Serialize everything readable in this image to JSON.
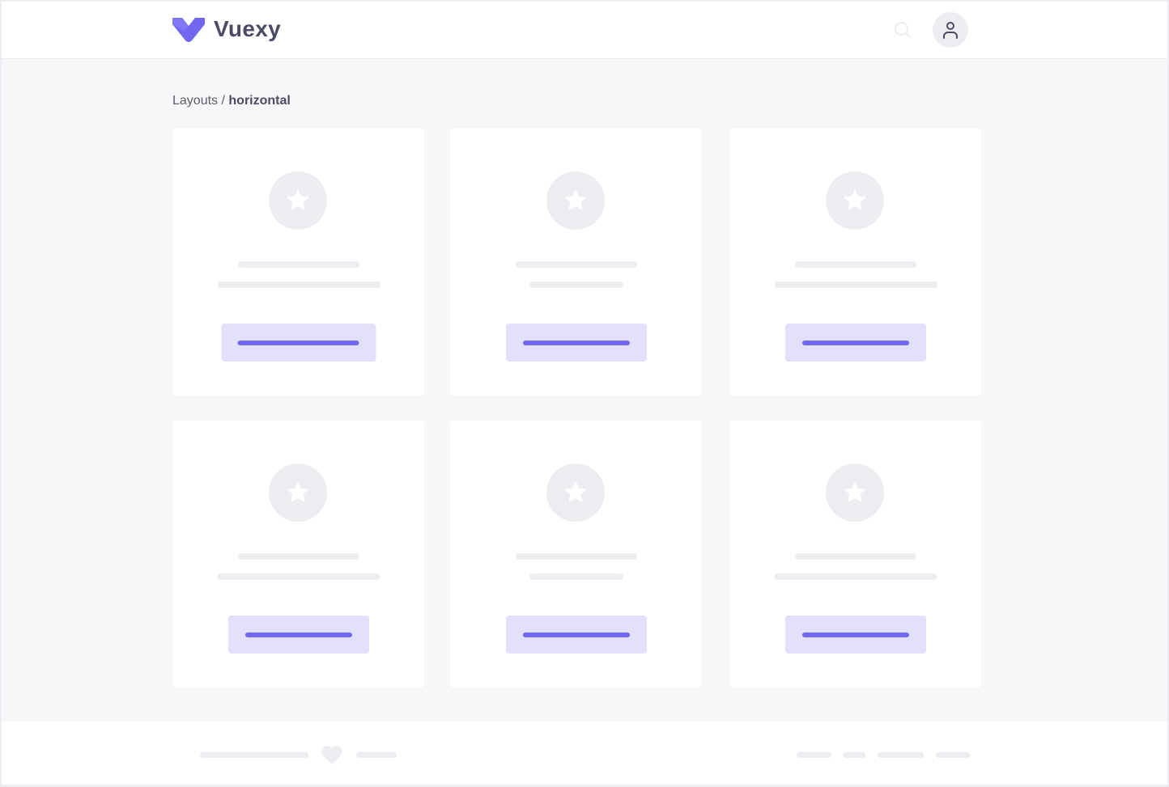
{
  "header": {
    "brand": "Vuexy",
    "logo_icon": "vuexy-logo",
    "search_icon": "search-icon",
    "avatar_icon": "user-icon"
  },
  "breadcrumb": {
    "parent": "Layouts",
    "separator": " / ",
    "current": "horizontal"
  },
  "colors": {
    "accent": "#7367f0",
    "accent_light": "#e3e0fc",
    "placeholder": "#ededf1",
    "text": "#4b4b63"
  },
  "cards": [
    {
      "icon": "star-icon"
    },
    {
      "icon": "star-icon"
    },
    {
      "icon": "star-icon"
    },
    {
      "icon": "star-icon"
    },
    {
      "icon": "star-icon"
    },
    {
      "icon": "star-icon"
    }
  ],
  "footer": {
    "icon": "heart-icon"
  }
}
